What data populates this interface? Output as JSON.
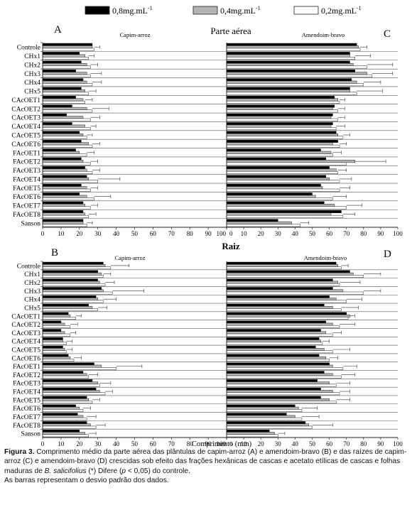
{
  "figure": {
    "legend": [
      {
        "label": "0,8mg.mL",
        "sup": "-1",
        "color": "#000000"
      },
      {
        "label": "0,4mg.mL",
        "sup": "-1",
        "color": "#b3b3b3"
      },
      {
        "label": "0,2mg.mL",
        "sup": "-1",
        "color": "#ffffff"
      }
    ],
    "top_heading": "Parte aérea",
    "bottom_heading": "Raiz",
    "x_axis_title": "Comprimento (mm)",
    "colors": {
      "high": "#000000",
      "mid": "#b3b3b3",
      "low": "#ffffff",
      "stroke": "#222222"
    }
  },
  "caption": {
    "label": "Figura 3.",
    "text1": " Comprimento médio da parte aérea das plântulas de capim-arroz (A) e amendoim-bravo (B) e das raízes de capim-arroz (C) e amendoim-bravo (D) crescidas sob efeito das frações hexânicas de cascas e acetato etílicas de cascas e folhas maduras de ",
    "species": "B. salicifolius",
    "text2": " (*) Difere (",
    "p": "p",
    "text3": " < 0,05) do controle.",
    "line2": "As barras representam o desvio padrão dos dados."
  },
  "chart_data": [
    {
      "panel": "A",
      "type": "bar",
      "orientation": "horizontal",
      "title": "Capim-arroz",
      "categories": [
        "Controle",
        "CHx1",
        "CHx2",
        "CHx3",
        "CHx4",
        "CHx5",
        "CAcOET1",
        "CAcOET2",
        "CAcOET3",
        "CAcOET4",
        "CAcOET5",
        "CAcOET6",
        "FAcOET1",
        "FAcOET2",
        "FAcOET3",
        "FAcOET4",
        "FAcOET5",
        "FAcOET6",
        "FAcOET7",
        "FAcOET8",
        "Sanson"
      ],
      "xlim": [
        0,
        100
      ],
      "x_ticks": [
        0,
        10,
        20,
        30,
        40,
        50,
        60,
        70,
        80,
        90,
        100
      ],
      "series": [
        {
          "name": "0,8mg.mL-1",
          "values": [
            27,
            20,
            21,
            18,
            22,
            21,
            18,
            16,
            13,
            16,
            20,
            21,
            18,
            21,
            23,
            24,
            21,
            20,
            22,
            22,
            22
          ]
        },
        {
          "name": "0,4mg.mL-1",
          "values": [
            27,
            23,
            24,
            24,
            24,
            23,
            22,
            24,
            22,
            23,
            22,
            25,
            20,
            22,
            24,
            25,
            24,
            24,
            23,
            23,
            22
          ]
        },
        {
          "name": "0,2mg.mL-1",
          "values": [
            28,
            25,
            26,
            26,
            27,
            25,
            23,
            27,
            26,
            26,
            24,
            27,
            24,
            26,
            27,
            30,
            26,
            28,
            26,
            25,
            24
          ]
        }
      ],
      "errors": [
        3,
        3,
        4,
        6,
        5,
        4,
        4,
        9,
        5,
        3,
        3,
        4,
        4,
        4,
        4,
        12,
        4,
        9,
        4,
        4,
        3
      ]
    },
    {
      "panel": "B",
      "type": "bar",
      "orientation": "horizontal",
      "title": "Capim-arroz",
      "categories": [
        "Controle",
        "CHx1",
        "CHx2",
        "CHx3",
        "CHx4",
        "CHx5",
        "CAcOET1",
        "CAcOET2",
        "CAcOET3",
        "CAcOET4",
        "CAcOET5",
        "CAcOET6",
        "FAcOET1",
        "FAcOET2",
        "FAcOET3",
        "FAcOET4",
        "FAcOET5",
        "FAcOET6",
        "FAcOET7",
        "FAcOET8",
        "Sanson"
      ],
      "xlim": [
        0,
        100
      ],
      "x_ticks": [
        0,
        10,
        20,
        30,
        40,
        50,
        60,
        70,
        80,
        90,
        100
      ],
      "series": [
        {
          "name": "0,8mg.mL-1",
          "values": [
            33,
            30,
            30,
            32,
            29,
            25,
            14,
            10,
            10,
            11,
            11,
            14,
            28,
            22,
            27,
            29,
            24,
            18,
            19,
            24,
            20
          ]
        },
        {
          "name": "0,4mg.mL-1",
          "values": [
            34,
            32,
            31,
            33,
            30,
            27,
            15,
            12,
            12,
            11,
            12,
            15,
            32,
            24,
            30,
            31,
            25,
            20,
            22,
            26,
            23
          ]
        },
        {
          "name": "0,2mg.mL-1",
          "values": [
            37,
            33,
            34,
            38,
            33,
            30,
            18,
            15,
            15,
            13,
            13,
            17,
            40,
            25,
            31,
            34,
            27,
            22,
            24,
            29,
            25
          ]
        }
      ],
      "errors": [
        10,
        4,
        5,
        17,
        7,
        5,
        3,
        4,
        3,
        3,
        3,
        4,
        14,
        5,
        6,
        4,
        4,
        4,
        5,
        5,
        4
      ]
    },
    {
      "panel": "C",
      "type": "bar",
      "orientation": "horizontal",
      "title": "Amendoim-bravo",
      "categories": [
        "Controle",
        "CHx1",
        "CHx2",
        "CHx3",
        "CHx4",
        "CHx5",
        "CAcOET1",
        "CAcOET2",
        "CAcOET3",
        "CAcOET4",
        "CAcOET5",
        "CAcOET6",
        "FAcOET1",
        "FAcOET2",
        "FAcOET3",
        "FAcOET4",
        "FAcOET5",
        "FAcOET6",
        "FAcOET7",
        "FAcOET8",
        "Sanson"
      ],
      "xlim": [
        0,
        100
      ],
      "x_ticks": [
        0,
        10,
        20,
        30,
        40,
        50,
        60,
        70,
        80,
        90,
        100
      ],
      "series": [
        {
          "name": "0,8mg.mL-1",
          "values": [
            76,
            72,
            72,
            75,
            73,
            72,
            63,
            63,
            62,
            62,
            64,
            65,
            55,
            58,
            60,
            58,
            55,
            50,
            57,
            67,
            30
          ]
        },
        {
          "name": "0,4mg.mL-1",
          "values": [
            77,
            72,
            74,
            82,
            76,
            72,
            65,
            62,
            61,
            61,
            65,
            62,
            61,
            75,
            64,
            60,
            56,
            52,
            63,
            61,
            38
          ]
        },
        {
          "name": "0,2mg.mL-1",
          "values": [
            78,
            75,
            82,
            85,
            80,
            76,
            66,
            65,
            65,
            64,
            68,
            66,
            62,
            70,
            65,
            66,
            66,
            62,
            70,
            68,
            43
          ]
        }
      ],
      "errors": [
        4,
        9,
        15,
        12,
        10,
        15,
        3,
        4,
        4,
        5,
        4,
        4,
        5,
        18,
        5,
        7,
        6,
        8,
        9,
        7,
        5
      ]
    },
    {
      "panel": "D",
      "type": "bar",
      "orientation": "horizontal",
      "title": "Amendoim-bravo",
      "categories": [
        "Controle",
        "CHx1",
        "CHx2",
        "CHx3",
        "CHx4",
        "CHx5",
        "CAcOET1",
        "CAcOET2",
        "CAcOET3",
        "CAcOET4",
        "CAcOET5",
        "CAcOET6",
        "FAcOET1",
        "FAcOET2",
        "FAcOET3",
        "FAcOET4",
        "FAcOET5",
        "FAcOET6",
        "FAcOET7",
        "FAcOET8",
        "Sanson"
      ],
      "xlim": [
        0,
        100
      ],
      "x_ticks": [
        0,
        10,
        20,
        30,
        40,
        50,
        60,
        70,
        80,
        90,
        100
      ],
      "series": [
        {
          "name": "0,8mg.mL-1",
          "values": [
            64,
            72,
            62,
            62,
            60,
            57,
            70,
            58,
            55,
            54,
            52,
            54,
            60,
            57,
            53,
            55,
            55,
            40,
            35,
            46,
            25
          ]
        },
        {
          "name": "0,4mg.mL-1",
          "values": [
            65,
            74,
            65,
            68,
            64,
            62,
            72,
            62,
            58,
            55,
            57,
            58,
            62,
            62,
            60,
            62,
            60,
            42,
            40,
            48,
            28
          ]
        },
        {
          "name": "0,2mg.mL-1",
          "values": [
            67,
            80,
            66,
            80,
            70,
            67,
            71,
            66,
            62,
            56,
            62,
            60,
            68,
            67,
            64,
            66,
            64,
            44,
            44,
            50,
            30
          ]
        }
      ],
      "errors": [
        4,
        10,
        12,
        10,
        9,
        10,
        3,
        9,
        5,
        4,
        10,
        5,
        8,
        8,
        8,
        6,
        8,
        9,
        10,
        12,
        4
      ]
    }
  ]
}
